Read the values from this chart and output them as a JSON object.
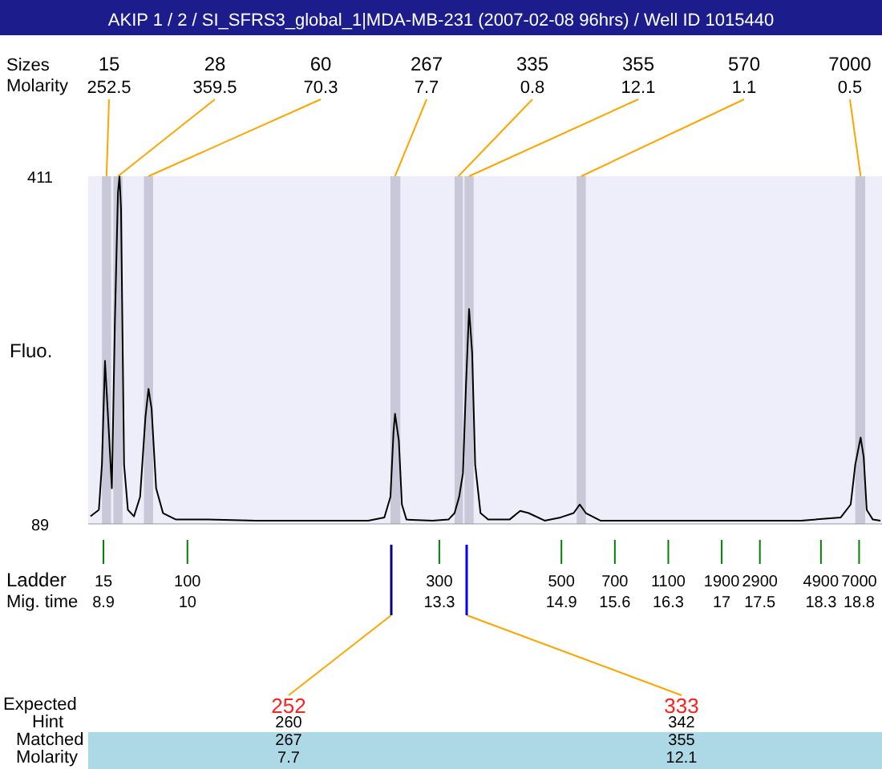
{
  "chart_data": {
    "type": "line",
    "title": "AKIP 1 / 2 / SI_SFRS3_global_1|MDA-MB-231 (2007-02-08 96hrs) / Well ID 1015440",
    "xlabel": "Mig. time",
    "ylabel": "Fluo.",
    "xlim": [
      8.7,
      19.1
    ],
    "ylim": [
      89,
      411
    ],
    "yticks": [
      89,
      411
    ],
    "xticks": [
      8.9,
      10,
      13.3,
      14.9,
      15.6,
      16.3,
      17,
      17.5,
      18.3,
      18.8
    ],
    "grid": false,
    "marker": "none",
    "line_style": "solid",
    "series": [
      {
        "color": "#000000",
        "x": [
          8.73,
          8.84,
          8.88,
          8.92,
          8.96,
          9.01,
          9.05,
          9.09,
          9.11,
          9.13,
          9.17,
          9.22,
          9.3,
          9.38,
          9.45,
          9.49,
          9.53,
          9.59,
          9.68,
          9.85,
          10.27,
          10.9,
          11.74,
          12.37,
          12.58,
          12.66,
          12.7,
          12.72,
          12.77,
          12.81,
          12.87,
          13.21,
          13.42,
          13.5,
          13.56,
          13.61,
          13.65,
          13.69,
          13.73,
          13.77,
          13.84,
          13.94,
          14.22,
          14.36,
          14.47,
          14.68,
          14.89,
          15.06,
          15.14,
          15.22,
          15.41,
          15.94,
          16.99,
          18.04,
          18.56,
          18.69,
          18.75,
          18.82,
          18.86,
          18.9,
          18.98,
          19.08
        ],
        "values": [
          96,
          102,
          144,
          240,
          188,
          122,
          277,
          396,
          411,
          381,
          144,
          102,
          96,
          114,
          188,
          214,
          196,
          122,
          99,
          93,
          93,
          92,
          92,
          92,
          95,
          114,
          174,
          191,
          166,
          107,
          93,
          92,
          93,
          99,
          114,
          136,
          218,
          288,
          248,
          144,
          99,
          93,
          93,
          101,
          99,
          92,
          95,
          99,
          107,
          99,
          92,
          92,
          92,
          92,
          95,
          107,
          144,
          169,
          151,
          102,
          93,
          92
        ]
      }
    ],
    "bands": [
      {
        "axis": "x",
        "from": 8.88,
        "to": 9.0,
        "label": "15",
        "color": "#c8c8d8"
      },
      {
        "axis": "x",
        "from": 9.03,
        "to": 9.15,
        "label": "28",
        "color": "#c8c8d8"
      },
      {
        "axis": "x",
        "from": 9.43,
        "to": 9.55,
        "label": "60",
        "color": "#c8c8d8"
      },
      {
        "axis": "x",
        "from": 12.66,
        "to": 12.79,
        "label": "267",
        "color": "#c8c8d8"
      },
      {
        "axis": "x",
        "from": 13.5,
        "to": 13.61,
        "label": "335",
        "color": "#c8c8d8"
      },
      {
        "axis": "x",
        "from": 13.63,
        "to": 13.75,
        "label": "355",
        "color": "#c8c8d8"
      },
      {
        "axis": "x",
        "from": 15.1,
        "to": 15.22,
        "label": "570",
        "color": "#c8c8d8"
      },
      {
        "axis": "x",
        "from": 18.75,
        "to": 18.88,
        "label": "7000",
        "color": "#c8c8d8"
      }
    ],
    "annotations": [
      "Sizes",
      "Molarity",
      "Ladder",
      "Expected",
      "Hint",
      "Matched",
      "Molarity",
      {
        "text": "252.5",
        "x": 8.94,
        "y": 411
      },
      {
        "text": "359.5",
        "x": 9.09,
        "y": 411
      },
      {
        "text": "70.3",
        "x": 9.49,
        "y": 411
      },
      {
        "text": "7.7",
        "x": 12.72,
        "y": 411
      },
      {
        "text": "0.8",
        "x": 13.55,
        "y": 411
      },
      {
        "text": "12.1",
        "x": 13.69,
        "y": 411
      },
      {
        "text": "1.1",
        "x": 15.16,
        "y": 411
      },
      {
        "text": "0.5",
        "x": 18.82,
        "y": 411
      },
      "15",
      "100",
      "300",
      "500",
      "700",
      "1100",
      "1900",
      "2900",
      "4900",
      "7000",
      "252",
      "260",
      "267",
      "7.7",
      "333",
      "342",
      "355",
      "12.1"
    ]
  }
}
